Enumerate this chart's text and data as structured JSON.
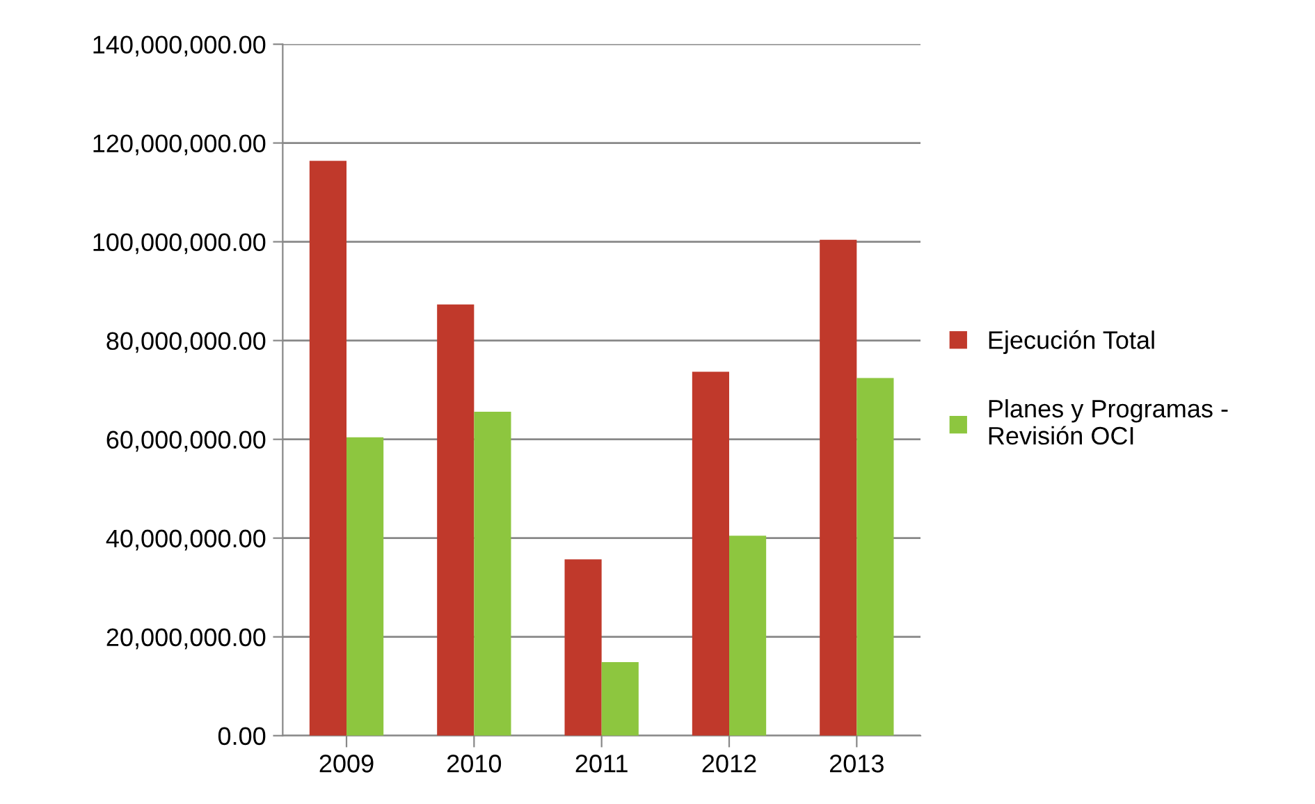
{
  "chart_data": {
    "type": "bar",
    "categories": [
      "2009",
      "2010",
      "2011",
      "2012",
      "2013"
    ],
    "series": [
      {
        "name": "Ejecución Total",
        "color": "#c0392b",
        "values": [
          116400000,
          87300000,
          35700000,
          73700000,
          100400000
        ]
      },
      {
        "name": "Planes y Programas - Revisión OCI",
        "color": "#8dc63f",
        "values": [
          60400000,
          65600000,
          14900000,
          40500000,
          72400000
        ]
      }
    ],
    "ylim": [
      0,
      140000000
    ],
    "yticks": [
      {
        "value": 0,
        "label": "0.00"
      },
      {
        "value": 20000000,
        "label": "20,000,000.00"
      },
      {
        "value": 40000000,
        "label": "40,000,000.00"
      },
      {
        "value": 60000000,
        "label": "60,000,000.00"
      },
      {
        "value": 80000000,
        "label": "80,000,000.00"
      },
      {
        "value": 100000000,
        "label": "100,000,000.00"
      },
      {
        "value": 120000000,
        "label": "120,000,000.00"
      },
      {
        "value": 140000000,
        "label": "140,000,000.00"
      }
    ],
    "grid": "y",
    "legend": "right"
  }
}
